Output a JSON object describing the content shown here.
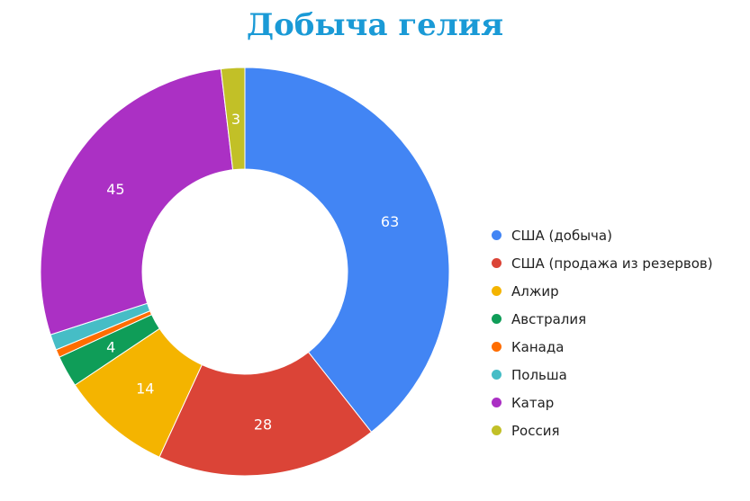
{
  "chart_data": {
    "type": "pie",
    "title": "Добыча гелия",
    "categories": [
      "США (добыча)",
      "США (продажа из резервов)",
      "Алжир",
      "Австралия",
      "Канада",
      "Польша",
      "Катар",
      "Россия"
    ],
    "values": [
      63,
      28,
      14,
      4,
      1,
      2,
      45,
      3
    ],
    "data_labels": [
      "63",
      "28",
      "14",
      "4",
      "",
      "",
      "45",
      "3"
    ],
    "colors": [
      "#4285f4",
      "#db4437",
      "#f4b400",
      "#0f9d58",
      "#ff6d00",
      "#46bdc6",
      "#ab30c4",
      "#c2c027"
    ],
    "donut": true,
    "legend_position": "right"
  }
}
